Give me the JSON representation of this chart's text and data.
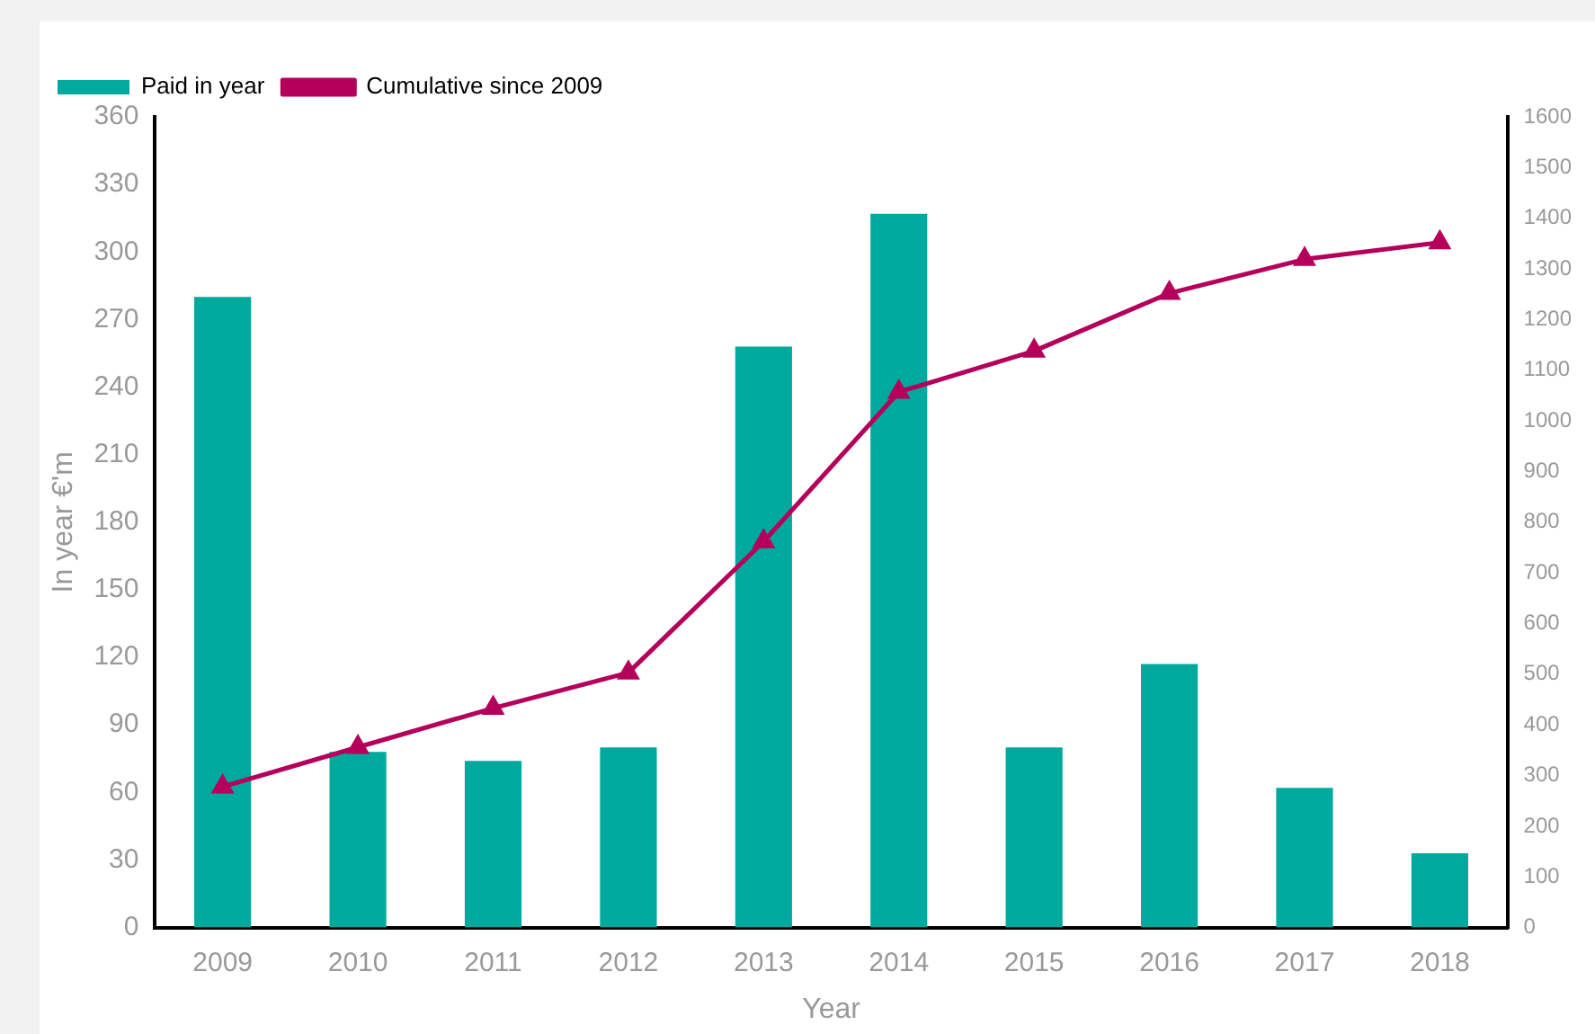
{
  "chart_data": {
    "type": "bar",
    "xlabel": "Year",
    "ylabel": "In year €'m",
    "categories": [
      "2009",
      "2010",
      "2011",
      "2012",
      "2013",
      "2014",
      "2015",
      "2016",
      "2017",
      "2018"
    ],
    "series": [
      {
        "name": "Paid in year",
        "color": "#00a99d",
        "values": [
          280,
          78,
          74,
          80,
          258,
          317,
          80,
          117,
          62,
          33
        ]
      },
      {
        "name": "Cumulative since 2009",
        "type": "line",
        "axis": "y2",
        "color": "#b5005b",
        "marker": "triangle",
        "values": [
          278,
          356,
          433,
          503,
          762,
          1057,
          1138,
          1252,
          1319,
          1352
        ]
      }
    ],
    "ylim": [
      0,
      360
    ],
    "yticks": [
      0,
      30,
      60,
      90,
      120,
      150,
      180,
      210,
      240,
      270,
      300,
      330,
      360
    ],
    "y2lim": [
      0,
      1600
    ],
    "y2ticks": [
      0,
      100,
      200,
      300,
      400,
      500,
      600,
      700,
      800,
      900,
      1000,
      1100,
      1200,
      1300,
      1400,
      1500,
      1600
    ],
    "grid": false,
    "legend": "top left"
  }
}
